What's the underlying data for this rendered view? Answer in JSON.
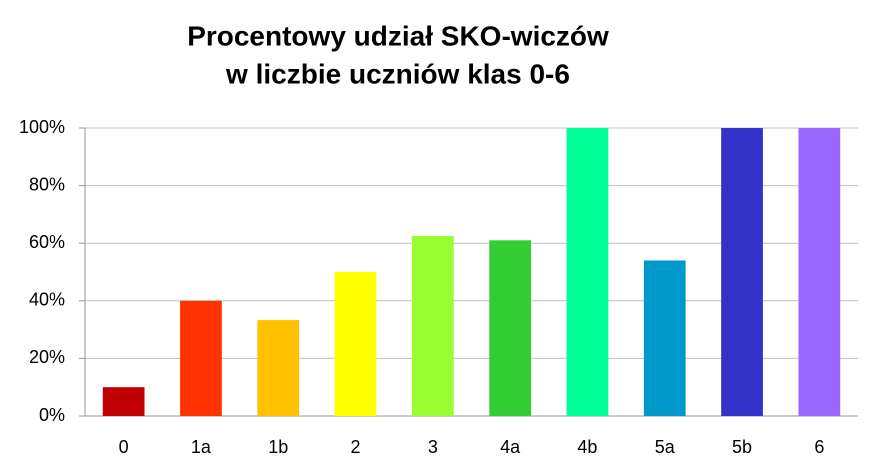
{
  "chart_data": {
    "type": "bar",
    "title": [
      "Procentowy udział SKO-wiczów",
      "w liczbie uczniów klas 0-6"
    ],
    "categories": [
      "0",
      "1a",
      "1b",
      "2",
      "3",
      "4a",
      "4b",
      "5a",
      "5b",
      "6"
    ],
    "values": [
      10,
      40,
      33.3,
      50,
      62.5,
      61,
      100,
      54,
      100,
      100
    ],
    "colors": [
      "#c00000",
      "#ff3300",
      "#ffc000",
      "#ffff00",
      "#99ff33",
      "#33cc33",
      "#00ff99",
      "#0099cc",
      "#3333cc",
      "#9966ff"
    ],
    "ylim": [
      0,
      100
    ],
    "yticks": [
      {
        "value": 0,
        "label": "0%"
      },
      {
        "value": 20,
        "label": "20%"
      },
      {
        "value": 40,
        "label": "40%"
      },
      {
        "value": 60,
        "label": "60%"
      },
      {
        "value": 80,
        "label": "80%"
      },
      {
        "value": 100,
        "label": "100%"
      }
    ],
    "grid": true
  }
}
